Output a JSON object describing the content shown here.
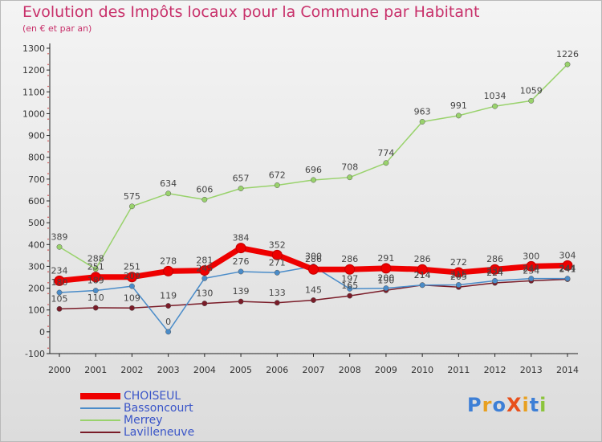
{
  "header": {
    "title": "Evolution des Impôts locaux pour la Commune par Habitant",
    "subtitle": "(en € et par an)"
  },
  "logo": {
    "text": "ProXiti",
    "letters": [
      {
        "ch": "P",
        "color": "#3d7fd6"
      },
      {
        "ch": "r",
        "color": "#e8a020"
      },
      {
        "ch": "o",
        "color": "#3d7fd6"
      },
      {
        "ch": "X",
        "color": "#e8501c"
      },
      {
        "ch": "i",
        "color": "#e8a020"
      },
      {
        "ch": "t",
        "color": "#3d7fd6"
      },
      {
        "ch": "i",
        "color": "#8cc43c"
      }
    ]
  },
  "chart_data": {
    "type": "line",
    "title": "Evolution des Impôts locaux pour la Commune par Habitant",
    "subtitle": "(en € et par an)",
    "xlabel": "",
    "ylabel": "",
    "ylim": [
      -100,
      1300
    ],
    "yticks": [
      -100,
      0,
      100,
      200,
      300,
      400,
      500,
      600,
      700,
      800,
      900,
      1000,
      1100,
      1200,
      1300
    ],
    "grid": false,
    "legend_position": "bottom-left",
    "x": [
      "2000",
      "2001",
      "2002",
      "2003",
      "2004",
      "2005",
      "2006",
      "2007",
      "2008",
      "2009",
      "2010",
      "2011",
      "2012",
      "2013",
      "2014"
    ],
    "series": [
      {
        "name": "Lavilleneuve",
        "color": "#7a1c28",
        "values": [
          105,
          110,
          109,
          119,
          130,
          139,
          133,
          145,
          165,
          190,
          214,
          205,
          224,
          234,
          241
        ],
        "labels": [
          "105",
          "110",
          "109",
          "119",
          "130",
          "139",
          "133",
          "145",
          "165",
          "190",
          "214",
          "205",
          "224",
          "234",
          "241"
        ]
      },
      {
        "name": "Bassoncourt",
        "color": "#4a8cc9",
        "values": [
          180,
          189,
          209,
          0,
          245,
          276,
          271,
          300,
          197,
          200,
          214,
          215,
          234,
          244,
          244
        ],
        "labels": [
          "180",
          "189",
          "209",
          "0",
          "245",
          "276",
          "271",
          "300",
          "197",
          "200",
          "214",
          "215",
          "234",
          "244",
          "244"
        ]
      },
      {
        "name": "Merrey",
        "color": "#99d26c",
        "values": [
          389,
          288,
          575,
          634,
          606,
          657,
          672,
          696,
          708,
          774,
          963,
          991,
          1034,
          1059,
          1226
        ],
        "labels": [
          "389",
          "288",
          "575",
          "634",
          "606",
          "657",
          "672",
          "696",
          "708",
          "774",
          "963",
          "991",
          "1034",
          "1059",
          "1226"
        ]
      },
      {
        "name": "CHOISEUL",
        "color": "#ee0000",
        "values": [
          234,
          251,
          251,
          278,
          281,
          384,
          352,
          286,
          286,
          291,
          286,
          272,
          286,
          300,
          304
        ],
        "labels": [
          "234",
          "251",
          "251",
          "278",
          "281",
          "384",
          "352",
          "286",
          "286",
          "291",
          "286",
          "272",
          "286",
          "300",
          "304"
        ]
      }
    ],
    "legend": [
      "CHOISEUL",
      "Bassoncourt",
      "Merrey",
      "Lavilleneuve"
    ]
  }
}
